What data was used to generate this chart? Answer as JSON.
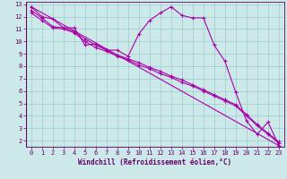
{
  "background_color": "#cce8e8",
  "plot_bg_color": "#cce8e8",
  "line_color": "#aa00aa",
  "grid_color": "#99cccc",
  "xlabel": "Windchill (Refroidissement éolien,°C)",
  "xlim": [
    -0.5,
    23.5
  ],
  "ylim": [
    1.5,
    13.2
  ],
  "xticks": [
    0,
    1,
    2,
    3,
    4,
    5,
    6,
    7,
    8,
    9,
    10,
    11,
    12,
    13,
    14,
    15,
    16,
    17,
    18,
    19,
    20,
    21,
    22,
    23
  ],
  "yticks": [
    2,
    3,
    4,
    5,
    6,
    7,
    8,
    9,
    10,
    11,
    12,
    13
  ],
  "series": [
    {
      "x": [
        0,
        1,
        2,
        3,
        4,
        5,
        6,
        7,
        8,
        9,
        10,
        11,
        12,
        13,
        14,
        15,
        16,
        17,
        18,
        19,
        20,
        21,
        22,
        23
      ],
      "y": [
        12.8,
        12.0,
        11.8,
        11.1,
        11.1,
        9.7,
        9.8,
        9.3,
        9.3,
        8.8,
        10.6,
        11.7,
        12.3,
        12.8,
        12.1,
        11.9,
        11.9,
        9.7,
        8.4,
        5.9,
        3.6,
        2.5,
        3.5,
        1.6
      ]
    },
    {
      "x": [
        0,
        23
      ],
      "y": [
        12.8,
        1.6
      ]
    },
    {
      "x": [
        0,
        1,
        2,
        3,
        4,
        5,
        6,
        7,
        8,
        9,
        10,
        11,
        12,
        13,
        14,
        15,
        16,
        17,
        18,
        19,
        20,
        21,
        22,
        23
      ],
      "y": [
        12.5,
        11.9,
        11.2,
        11.1,
        10.8,
        10.2,
        9.7,
        9.3,
        8.9,
        8.6,
        8.3,
        7.9,
        7.6,
        7.2,
        6.9,
        6.5,
        6.1,
        5.7,
        5.3,
        4.9,
        4.1,
        3.3,
        2.6,
        1.9
      ]
    },
    {
      "x": [
        0,
        1,
        2,
        3,
        4,
        5,
        6,
        7,
        8,
        9,
        10,
        11,
        12,
        13,
        14,
        15,
        16,
        17,
        18,
        19,
        20,
        21,
        22,
        23
      ],
      "y": [
        12.3,
        11.7,
        11.1,
        11.0,
        10.7,
        10.0,
        9.5,
        9.2,
        8.8,
        8.5,
        8.1,
        7.8,
        7.4,
        7.1,
        6.7,
        6.4,
        6.0,
        5.6,
        5.2,
        4.8,
        4.0,
        3.2,
        2.5,
        1.8
      ]
    }
  ]
}
